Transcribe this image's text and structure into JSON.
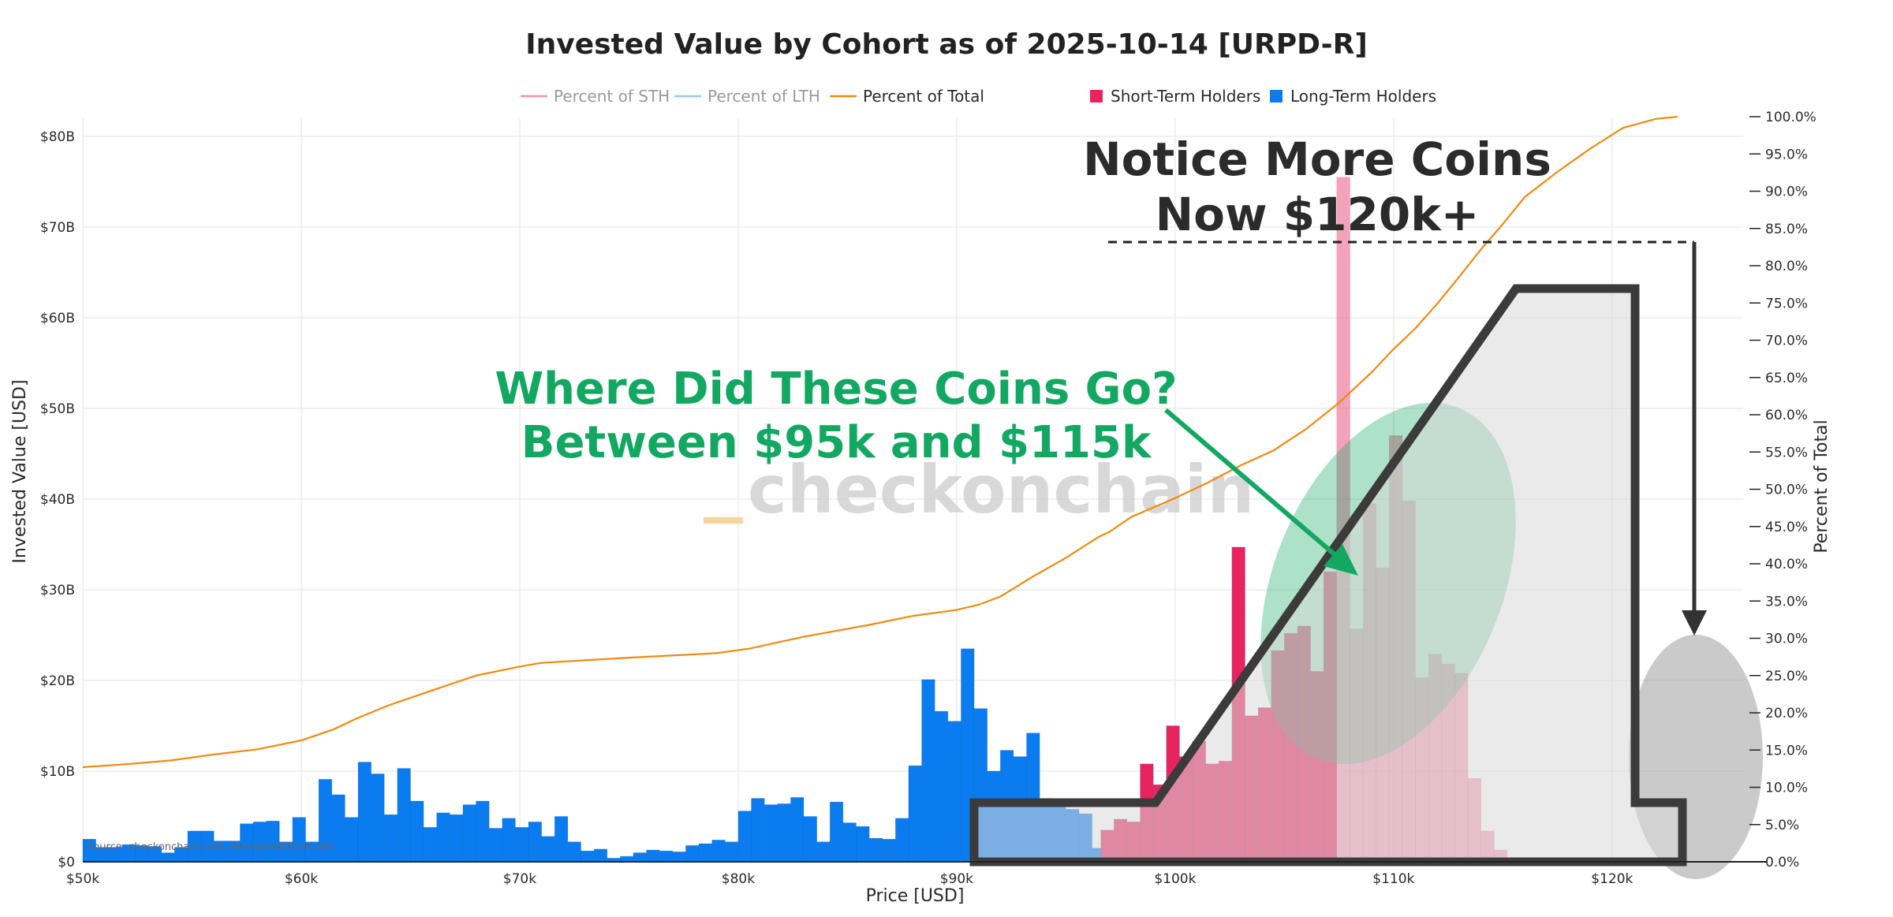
{
  "chart_data": {
    "type": "bar",
    "title": "Invested Value by Cohort as of 2025-10-14 [URPD-R]",
    "xlabel": "Price [USD]",
    "ylabel": "Invested Value [USD]",
    "y2label": "Percent of Total",
    "xlim": [
      50000,
      126000
    ],
    "ylim": [
      0,
      82
    ],
    "y2lim": [
      0,
      100
    ],
    "x_ticks": [
      {
        "value": 50000,
        "label": "$50k"
      },
      {
        "value": 60000,
        "label": "$60k"
      },
      {
        "value": 70000,
        "label": "$70k"
      },
      {
        "value": 80000,
        "label": "$80k"
      },
      {
        "value": 90000,
        "label": "$90k"
      },
      {
        "value": 100000,
        "label": "$100k"
      },
      {
        "value": 110000,
        "label": "$110k"
      },
      {
        "value": 120000,
        "label": "$120k"
      }
    ],
    "y_ticks": [
      {
        "value": 0,
        "label": "$0"
      },
      {
        "value": 10,
        "label": "$10B"
      },
      {
        "value": 20,
        "label": "$20B"
      },
      {
        "value": 30,
        "label": "$30B"
      },
      {
        "value": 40,
        "label": "$40B"
      },
      {
        "value": 50,
        "label": "$50B"
      },
      {
        "value": 60,
        "label": "$60B"
      },
      {
        "value": 70,
        "label": "$70B"
      },
      {
        "value": 80,
        "label": "$80B"
      }
    ],
    "y2_ticks": [
      "0.0%",
      "5.0%",
      "10.0%",
      "15.0%",
      "20.0%",
      "25.0%",
      "30.0%",
      "35.0%",
      "40.0%",
      "45.0%",
      "50.0%",
      "55.0%",
      "60.0%",
      "65.0%",
      "70.0%",
      "75.0%",
      "80.0%",
      "85.0%",
      "90.0%",
      "95.0%",
      "100.0%"
    ],
    "legend": [
      {
        "name": "Percent of STH",
        "color": "#f48fb1",
        "kind": "line",
        "muted": true
      },
      {
        "name": "Percent of LTH",
        "color": "#90caf9",
        "kind": "line",
        "muted": true
      },
      {
        "name": "Percent of Total",
        "color": "#f2890f",
        "kind": "line",
        "muted": false
      },
      {
        "name": "Short-Term Holders",
        "color": "#e8245e",
        "kind": "box",
        "muted": false
      },
      {
        "name": "Long-Term Holders",
        "color": "#0a7cf0",
        "kind": "box",
        "muted": false
      }
    ],
    "lth_bins": {
      "x_start": 50000,
      "bin_width": 600,
      "values": [
        2.5,
        1.6,
        1.6,
        1.9,
        1.8,
        1.7,
        1.0,
        1.6,
        3.4,
        3.4,
        2.3,
        2.3,
        4.2,
        4.4,
        4.5,
        2.2,
        4.9,
        2.2,
        9.1,
        7.4,
        4.9,
        11.0,
        9.7,
        5.2,
        10.3,
        6.7,
        3.8,
        5.4,
        5.2,
        6.3,
        6.7,
        3.7,
        4.8,
        3.8,
        4.4,
        2.8,
        5.0,
        2.2,
        1.2,
        1.4,
        0.4,
        0.6,
        1.0,
        1.3,
        1.2,
        1.1,
        1.8,
        2.0,
        2.4,
        2.2,
        5.6,
        7.0,
        6.3,
        6.4,
        7.1,
        5.0,
        2.2,
        6.6,
        4.3,
        3.9,
        2.6,
        2.5,
        4.8,
        10.6,
        20.1,
        16.6,
        15.5,
        23.5,
        16.9,
        10.0,
        12.3,
        11.6,
        14.2,
        7.0,
        6.3,
        5.8,
        5.3,
        1.5,
        0.6
      ],
      "color": "#0a7cf0"
    },
    "sth_bins": {
      "x_start": 96600,
      "bin_width": 600,
      "values": [
        3.5,
        4.7,
        4.4,
        10.8,
        8.5,
        15.0,
        11.6,
        13.3,
        10.8,
        11.1,
        34.7,
        16.1,
        17.0,
        23.3,
        25.2,
        26.0,
        21.0,
        32.0,
        75.5,
        25.7,
        39.5,
        32.4,
        47.0,
        39.8,
        20.3,
        22.9,
        21.8,
        20.8,
        9.2,
        3.4,
        1.3
      ],
      "color": "#e8245e"
    },
    "sth_faded_from_bin": 18,
    "percent_of_total": {
      "color": "#f2890f",
      "points": [
        [
          50000,
          12.7
        ],
        [
          52000,
          13.1
        ],
        [
          54000,
          13.6
        ],
        [
          56000,
          14.4
        ],
        [
          58000,
          15.1
        ],
        [
          60000,
          16.3
        ],
        [
          61500,
          17.8
        ],
        [
          62500,
          19.2
        ],
        [
          64000,
          21.0
        ],
        [
          66000,
          23.0
        ],
        [
          68000,
          25.0
        ],
        [
          70000,
          26.2
        ],
        [
          71000,
          26.7
        ],
        [
          75000,
          27.4
        ],
        [
          79000,
          28.0
        ],
        [
          80500,
          28.6
        ],
        [
          83000,
          30.2
        ],
        [
          86000,
          31.8
        ],
        [
          88000,
          33.0
        ],
        [
          90000,
          33.8
        ],
        [
          91000,
          34.5
        ],
        [
          92000,
          35.6
        ],
        [
          93500,
          38.3
        ],
        [
          95000,
          40.8
        ],
        [
          96500,
          43.6
        ],
        [
          97000,
          44.3
        ],
        [
          98000,
          46.3
        ],
        [
          100000,
          48.8
        ],
        [
          101500,
          50.9
        ],
        [
          103000,
          53.2
        ],
        [
          104500,
          55.2
        ],
        [
          106000,
          58.1
        ],
        [
          107500,
          61.6
        ],
        [
          109000,
          65.7
        ],
        [
          110000,
          68.8
        ],
        [
          111000,
          71.6
        ],
        [
          112000,
          74.9
        ],
        [
          113000,
          78.5
        ],
        [
          114000,
          82.2
        ],
        [
          115000,
          85.6
        ],
        [
          116000,
          89.2
        ],
        [
          117500,
          92.6
        ],
        [
          119000,
          95.7
        ],
        [
          120500,
          98.5
        ],
        [
          122000,
          99.7
        ],
        [
          123000,
          100.0
        ]
      ]
    },
    "annotations": {
      "green_title_line1": "Where Did These Coins Go?",
      "green_title_line2": "Between $95k and $115k",
      "dark_title_line1": "Notice More Coins",
      "dark_title_line2": "Now $120k+",
      "watermark": "checkonchain",
      "source": "Source: checkonchain.com, ResearchBitcoin.net"
    }
  }
}
